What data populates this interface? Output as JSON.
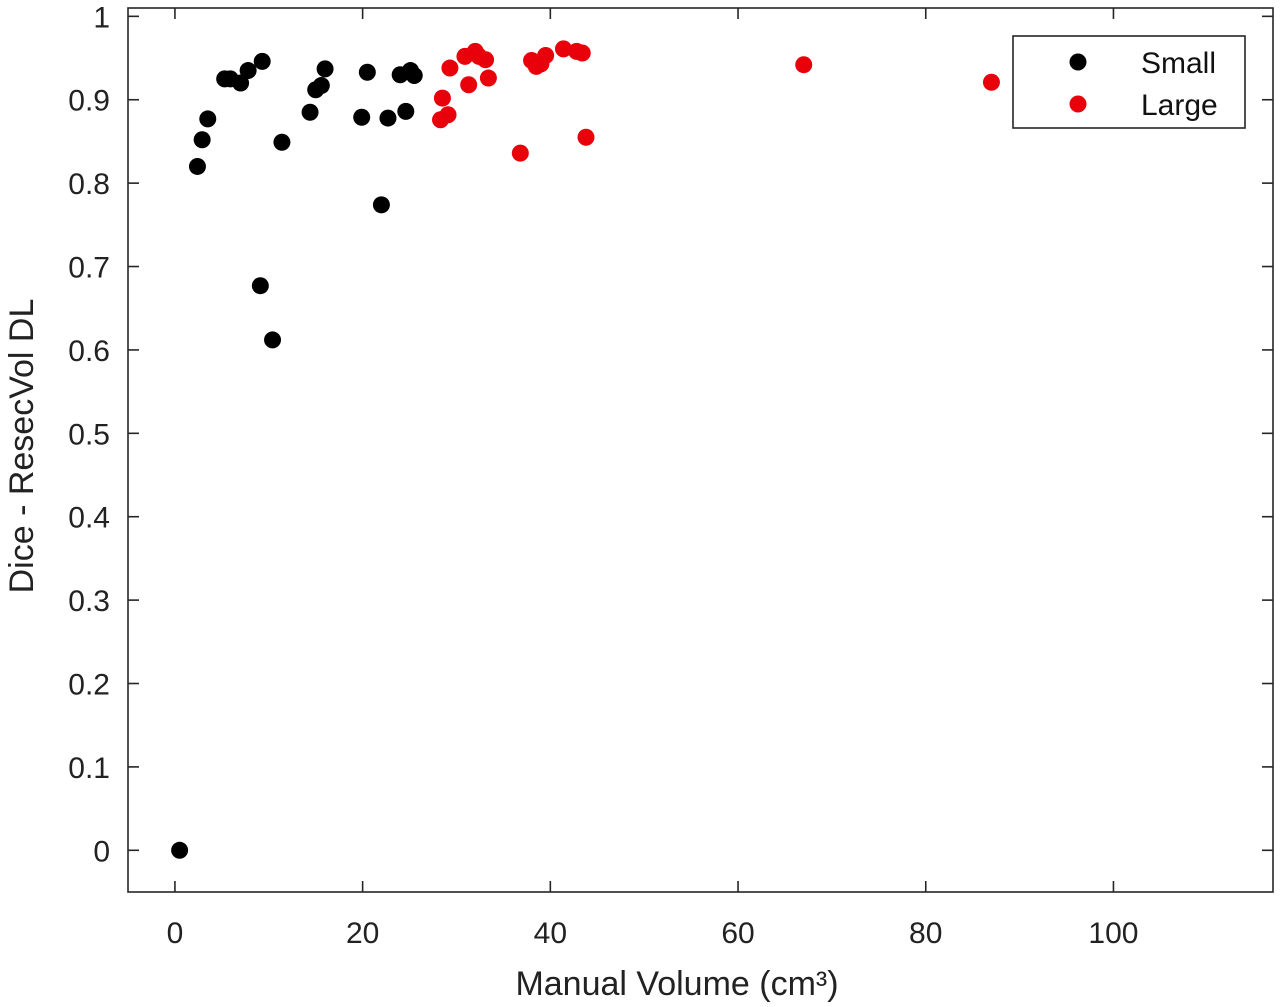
{
  "chart_data": {
    "type": "scatter",
    "title": "",
    "xlabel": "Manual Volume (cm³)",
    "ylabel": "Dice - ResecVol DL",
    "xlim": [
      -5,
      117
    ],
    "ylim": [
      -0.05,
      1.01
    ],
    "xticks": [
      0,
      20,
      40,
      60,
      80,
      100
    ],
    "yticks": [
      0,
      0.1,
      0.2,
      0.3,
      0.4,
      0.5,
      0.6,
      0.7,
      0.8,
      0.9,
      1
    ],
    "grid": false,
    "legend_position": "top-right",
    "series": [
      {
        "name": "Small",
        "color": "#000000",
        "points": [
          [
            0.5,
            0.0
          ],
          [
            2.4,
            0.82
          ],
          [
            2.9,
            0.852
          ],
          [
            3.5,
            0.877
          ],
          [
            5.3,
            0.925
          ],
          [
            5.9,
            0.925
          ],
          [
            7.0,
            0.92
          ],
          [
            7.8,
            0.935
          ],
          [
            9.1,
            0.677
          ],
          [
            9.3,
            0.946
          ],
          [
            10.4,
            0.612
          ],
          [
            11.4,
            0.849
          ],
          [
            14.4,
            0.885
          ],
          [
            15.0,
            0.912
          ],
          [
            15.6,
            0.917
          ],
          [
            16.0,
            0.937
          ],
          [
            19.9,
            0.879
          ],
          [
            20.5,
            0.933
          ],
          [
            22.0,
            0.774
          ],
          [
            22.7,
            0.878
          ],
          [
            24.0,
            0.93
          ],
          [
            24.6,
            0.886
          ],
          [
            25.1,
            0.935
          ],
          [
            25.5,
            0.929
          ]
        ]
      },
      {
        "name": "Large",
        "color": "#e8000b",
        "points": [
          [
            28.3,
            0.876
          ],
          [
            28.5,
            0.902
          ],
          [
            29.1,
            0.882
          ],
          [
            29.3,
            0.938
          ],
          [
            30.9,
            0.952
          ],
          [
            31.3,
            0.918
          ],
          [
            32.0,
            0.958
          ],
          [
            32.4,
            0.952
          ],
          [
            33.1,
            0.948
          ],
          [
            33.4,
            0.926
          ],
          [
            36.8,
            0.836
          ],
          [
            38.0,
            0.947
          ],
          [
            38.5,
            0.94
          ],
          [
            39.0,
            0.943
          ],
          [
            39.5,
            0.953
          ],
          [
            41.4,
            0.961
          ],
          [
            42.8,
            0.958
          ],
          [
            43.4,
            0.956
          ],
          [
            43.8,
            0.855
          ],
          [
            67.0,
            0.942
          ],
          [
            87.0,
            0.921
          ]
        ]
      }
    ]
  }
}
